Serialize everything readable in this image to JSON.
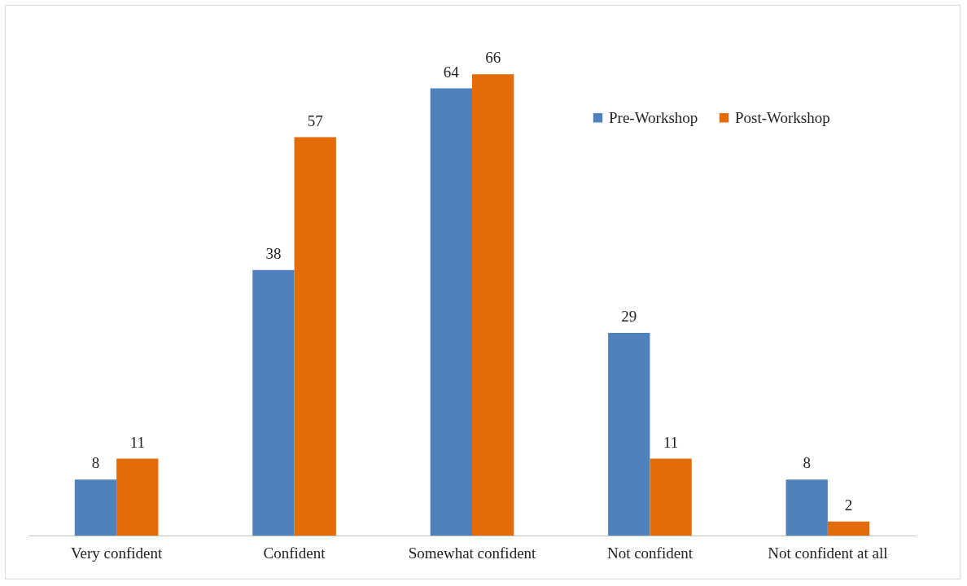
{
  "chart_data": {
    "type": "bar",
    "categories": [
      "Very confident",
      "Confident",
      "Somewhat confident",
      "Not confident",
      "Not confident at all"
    ],
    "series": [
      {
        "name": "Pre-Workshop",
        "color": "#4f81bd",
        "values": [
          8,
          38,
          64,
          29,
          8
        ]
      },
      {
        "name": "Post-Workshop",
        "color": "#e36c09",
        "values": [
          11,
          57,
          66,
          11,
          2
        ]
      }
    ],
    "data_labels": true,
    "legend": "top right",
    "tick_labels": "x",
    "grid": false
  }
}
